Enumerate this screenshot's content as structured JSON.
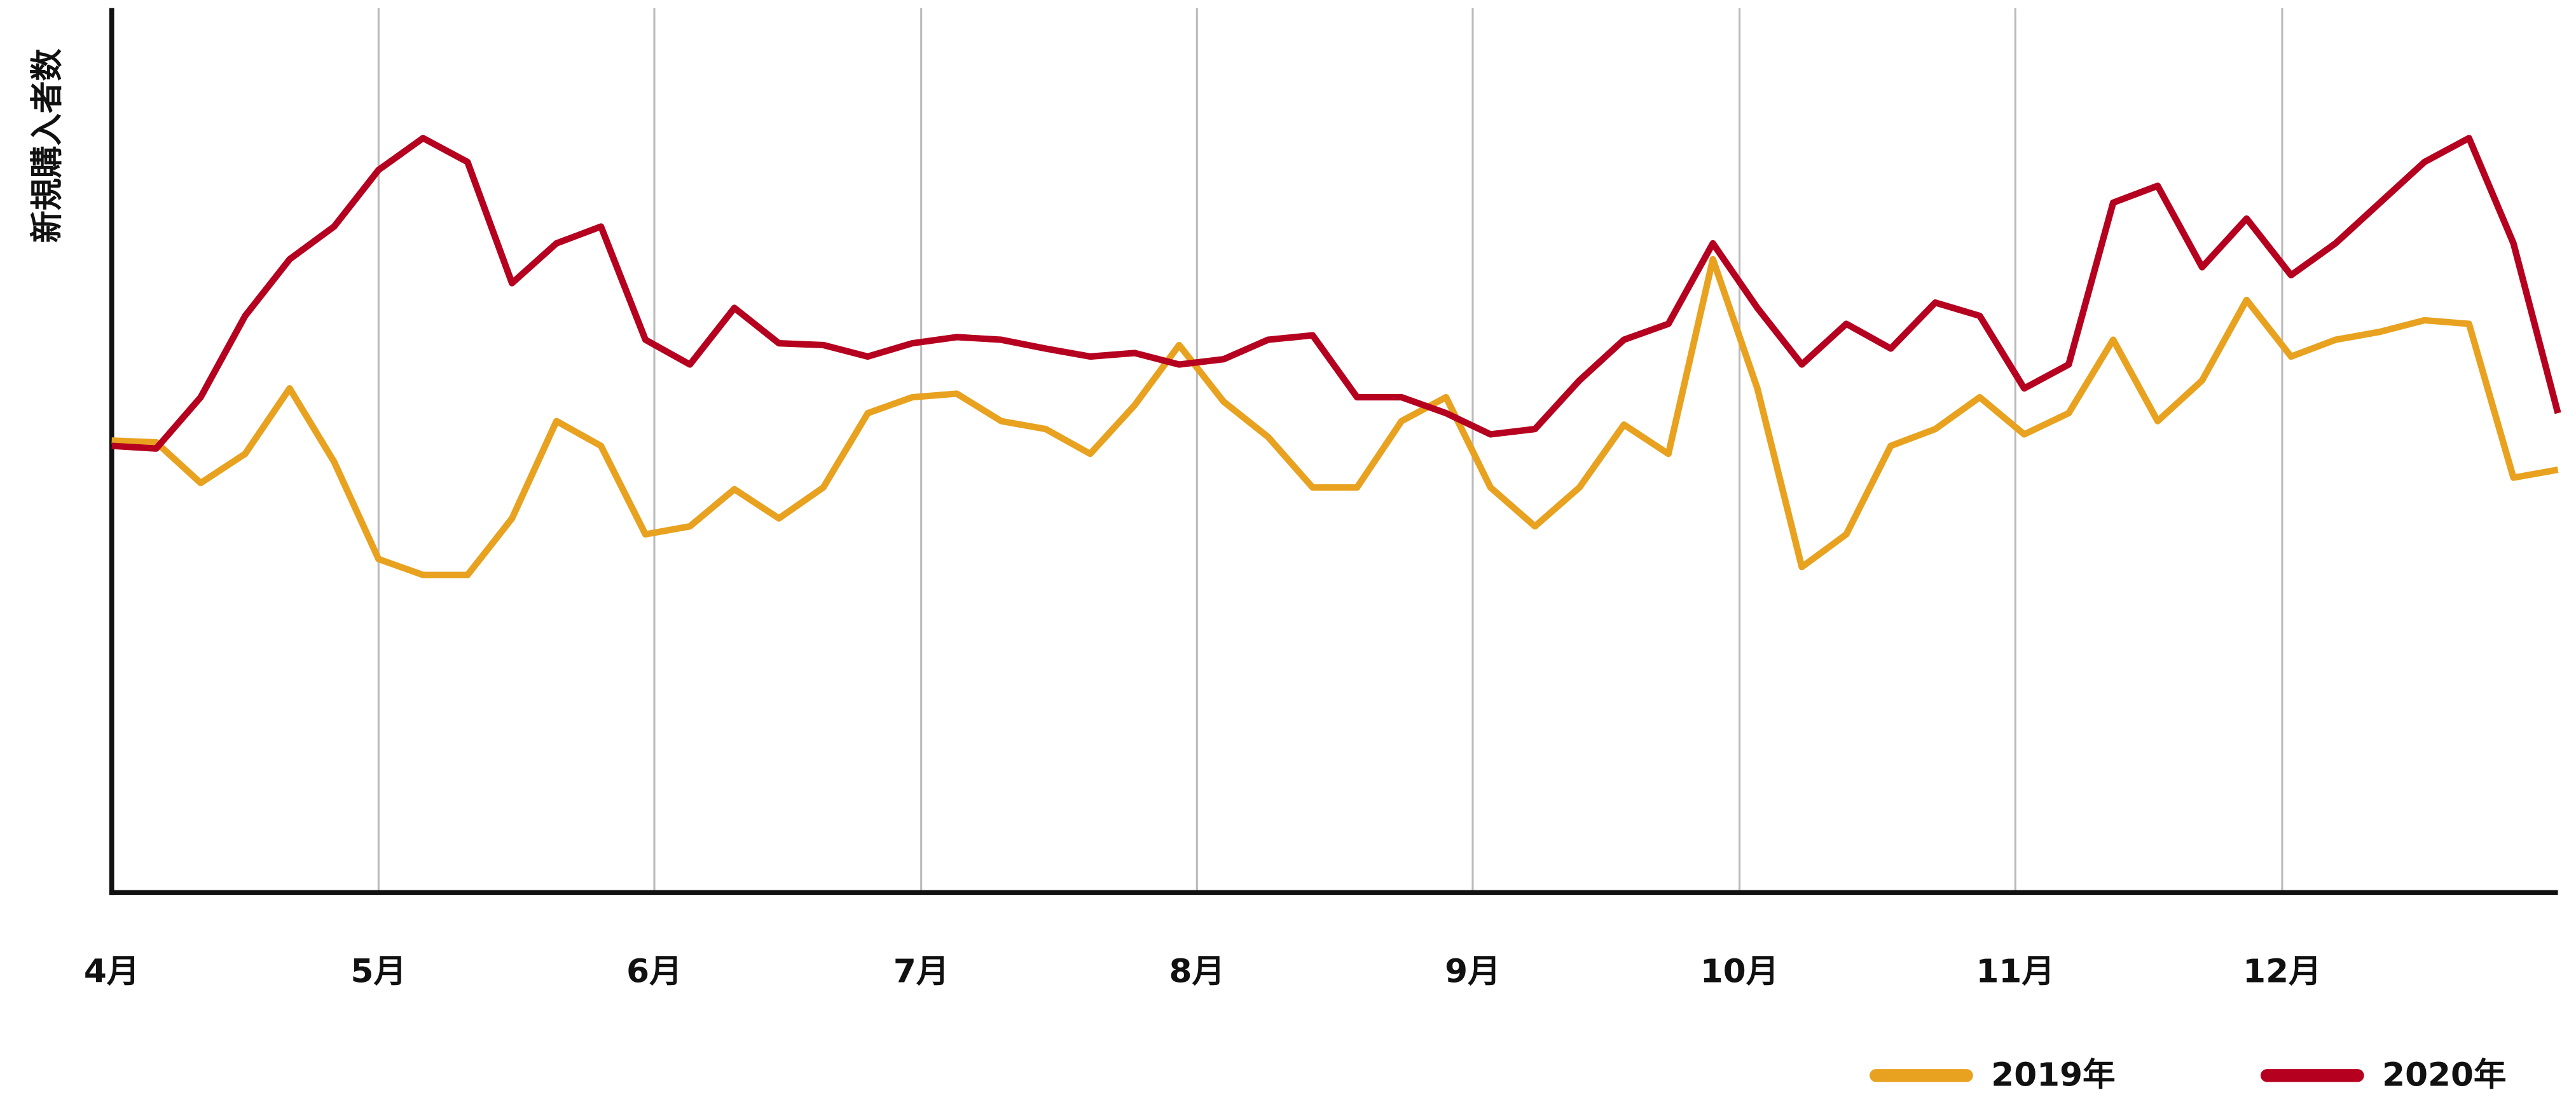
{
  "chart_data": {
    "type": "line",
    "y_label": "新規購入者数",
    "x": [
      0,
      5,
      10,
      15,
      20,
      25,
      30,
      35,
      40,
      45,
      50,
      55,
      60,
      65,
      70,
      75,
      80,
      85,
      90,
      95,
      100,
      105,
      110,
      115,
      120,
      125,
      130,
      135,
      140,
      145,
      150,
      155,
      160,
      165,
      170,
      175,
      180,
      185,
      190,
      195,
      200,
      205,
      210,
      215,
      220,
      225,
      230,
      235,
      240,
      245,
      250,
      255,
      260,
      265,
      270,
      275
    ],
    "xlim": [
      0,
      275
    ],
    "xticks": [
      {
        "value": 0,
        "label": "4月"
      },
      {
        "value": 30,
        "label": "5月"
      },
      {
        "value": 61,
        "label": "6月"
      },
      {
        "value": 91,
        "label": "7月"
      },
      {
        "value": 122,
        "label": "8月"
      },
      {
        "value": 153,
        "label": "9月"
      },
      {
        "value": 183,
        "label": "10月"
      },
      {
        "value": 214,
        "label": "11月"
      },
      {
        "value": 244,
        "label": "12月"
      }
    ],
    "ylim": [
      0,
      100
    ],
    "grid": true,
    "legend": "bottom-right",
    "series": [
      {
        "name": "2019年",
        "color": "#e8a21f",
        "values": [
          51.1,
          50.9,
          46.3,
          49.6,
          57.0,
          48.7,
          37.7,
          35.9,
          35.9,
          42.3,
          53.3,
          50.5,
          40.5,
          41.4,
          45.6,
          42.3,
          45.8,
          54.2,
          56.0,
          56.4,
          53.3,
          52.4,
          49.6,
          55.1,
          61.9,
          55.5,
          51.5,
          45.8,
          45.8,
          53.3,
          56.0,
          45.8,
          41.4,
          45.8,
          52.9,
          49.6,
          71.6,
          57.0,
          36.8,
          40.5,
          50.5,
          52.4,
          56.0,
          51.8,
          54.2,
          62.5,
          53.3,
          57.9,
          67.0,
          60.6,
          62.5,
          63.4,
          64.7,
          64.3,
          46.9,
          47.8
        ]
      },
      {
        "name": "2020年",
        "color": "#b5001f",
        "values": [
          50.5,
          50.2,
          56.0,
          65.2,
          71.6,
          75.3,
          81.7,
          85.3,
          82.6,
          68.9,
          73.4,
          75.3,
          62.5,
          59.7,
          66.1,
          62.1,
          61.9,
          60.6,
          62.1,
          62.8,
          62.5,
          61.5,
          60.6,
          61.0,
          59.7,
          60.3,
          62.5,
          63.0,
          56.0,
          56.0,
          54.2,
          51.8,
          52.4,
          57.9,
          62.5,
          64.3,
          73.4,
          66.1,
          59.7,
          64.3,
          61.5,
          66.7,
          65.2,
          57.0,
          59.7,
          78.0,
          79.9,
          70.7,
          76.2,
          69.8,
          73.4,
          78.0,
          82.6,
          85.3,
          73.4,
          54.2
        ]
      }
    ]
  }
}
